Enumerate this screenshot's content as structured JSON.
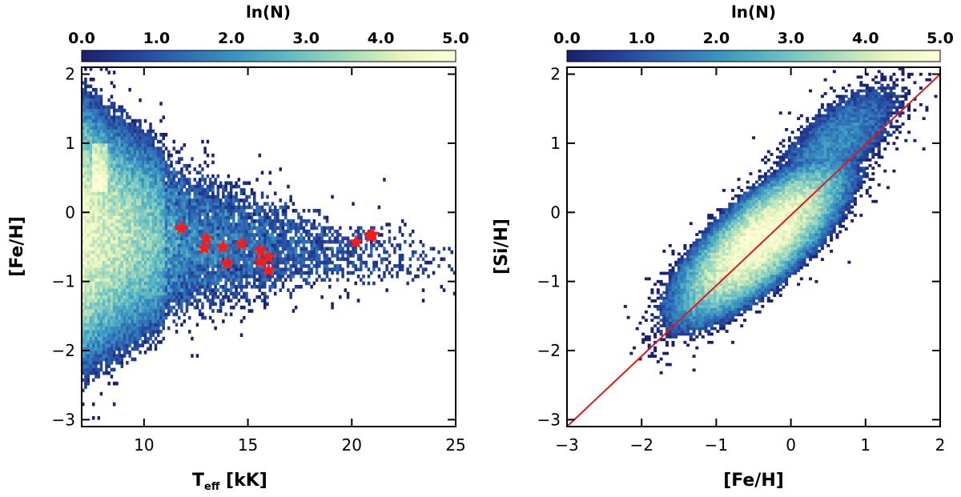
{
  "chart_data": [
    {
      "type": "heatmap",
      "panel": "left",
      "title": "",
      "xlabel_main": "T",
      "xlabel_sub": "eff",
      "xlabel_unit": " [kK]",
      "ylabel": "[Fe/H]",
      "xlim": [
        7,
        25
      ],
      "ylim": [
        -3.1,
        2.1
      ],
      "xticks": [
        10,
        15,
        20,
        25
      ],
      "xtick_labels": [
        "10",
        "15",
        "20",
        "25"
      ],
      "yticks": [
        -3,
        -2,
        -1,
        0,
        1,
        2
      ],
      "ytick_labels": [
        "−3",
        "−2",
        "−1",
        "0",
        "1",
        "2"
      ],
      "colorbar": {
        "label": "ln(N)",
        "range": [
          0,
          5
        ],
        "ticks": [
          0,
          1,
          2,
          3,
          4,
          5
        ],
        "tick_labels": [
          "0.0",
          "1.0",
          "2.0",
          "3.0",
          "4.0",
          "5.0"
        ],
        "colormap": [
          "#1a1f6e",
          "#23429a",
          "#2f6db5",
          "#3a97c2",
          "#67bfc3",
          "#a6dbbb",
          "#e8f5bd",
          "#ffffd9"
        ]
      },
      "density_description": "dense core near Teff 7-9 kK around [Fe/H] -0.3, sparse spread to 25 kK",
      "stars": {
        "color": "#ff1a1a",
        "points": [
          {
            "teff": 11.8,
            "feh": -0.23
          },
          {
            "teff": 13.0,
            "feh": -0.38
          },
          {
            "teff": 12.9,
            "feh": -0.52
          },
          {
            "teff": 13.8,
            "feh": -0.5
          },
          {
            "teff": 14.7,
            "feh": -0.46
          },
          {
            "teff": 14.0,
            "feh": -0.74
          },
          {
            "teff": 15.6,
            "feh": -0.55
          },
          {
            "teff": 16.0,
            "feh": -0.65
          },
          {
            "teff": 15.6,
            "feh": -0.71
          },
          {
            "teff": 16.0,
            "feh": -0.84
          },
          {
            "teff": 20.2,
            "feh": -0.43
          },
          {
            "teff": 20.9,
            "feh": -0.35
          },
          {
            "teff": 21.0,
            "feh": -0.32
          }
        ]
      }
    },
    {
      "type": "heatmap",
      "panel": "right",
      "title": "",
      "xlabel": "[Fe/H]",
      "ylabel": "[Si/H]",
      "xlim": [
        -3,
        2
      ],
      "ylim": [
        -3.1,
        2.1
      ],
      "xticks": [
        -3,
        -2,
        -1,
        0,
        1,
        2
      ],
      "xtick_labels": [
        "−3",
        "−2",
        "−1",
        "0",
        "1",
        "2"
      ],
      "yticks": [
        -3,
        -2,
        -1,
        0,
        1,
        2
      ],
      "ytick_labels": [
        "−3",
        "−2",
        "−1",
        "0",
        "1",
        "2"
      ],
      "colorbar": {
        "label": "ln(N)",
        "range": [
          0,
          5
        ],
        "ticks": [
          0,
          1,
          2,
          3,
          4,
          5
        ],
        "tick_labels": [
          "0.0",
          "1.0",
          "2.0",
          "3.0",
          "4.0",
          "5.0"
        ]
      },
      "density_description": "elongated cloud along one-to-one relation, peak near [Fe/H] -0.4, [Si/H] -0.4",
      "one_to_one_line": {
        "x": [
          -3,
          2
        ],
        "y": [
          -3.1,
          2.0
        ],
        "color": "#e0181e"
      }
    }
  ]
}
